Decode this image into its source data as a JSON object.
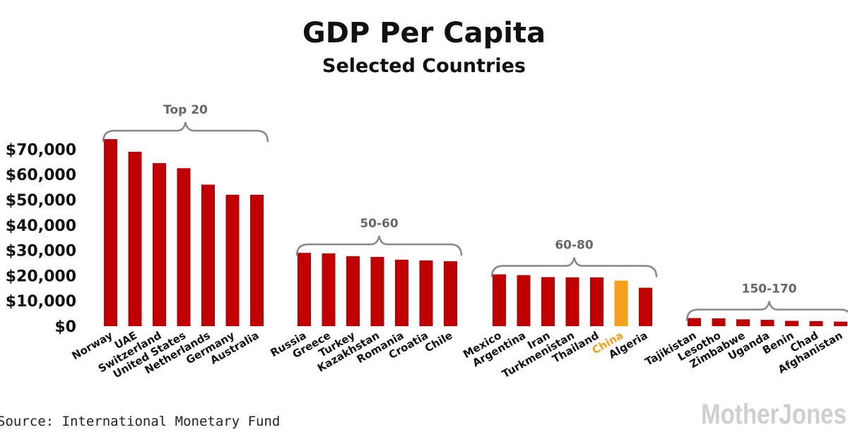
{
  "chart_data": {
    "type": "bar",
    "title": "GDP Per Capita",
    "subtitle": "Selected Countries",
    "xlabel": "",
    "ylabel": "",
    "ylim": [
      0,
      70000
    ],
    "yticks": [
      0,
      10000,
      20000,
      30000,
      40000,
      50000,
      60000,
      70000
    ],
    "ytick_labels": [
      "$0",
      "$10,000",
      "$20,000",
      "$30,000",
      "$40,000",
      "$50,000",
      "$60,000",
      "$70,000"
    ],
    "grid": false,
    "legend": "none",
    "colors": {
      "default": "#c00000",
      "highlight": "#f5a01a",
      "bracket": "#888888",
      "group_label": "#666666"
    },
    "groups": [
      {
        "name": "Top 20",
        "categories": [
          "Norway",
          "UAE",
          "Switzerland",
          "United States",
          "Netherlands",
          "Germany",
          "Australia"
        ],
        "values": [
          74000,
          69000,
          64500,
          62500,
          56000,
          52000,
          52000
        ]
      },
      {
        "name": "50-60",
        "categories": [
          "Russia",
          "Greece",
          "Turkey",
          "Kazakhstan",
          "Romania",
          "Croatia",
          "Chile"
        ],
        "values": [
          29000,
          28800,
          27700,
          27400,
          26300,
          26000,
          25700
        ]
      },
      {
        "name": "60-80",
        "categories": [
          "Mexico",
          "Argentina",
          "Iran",
          "Turkmenistan",
          "Thailand",
          "China",
          "Algeria"
        ],
        "values": [
          20500,
          20200,
          19400,
          19300,
          19300,
          18000,
          15200
        ],
        "highlight": [
          "China"
        ]
      },
      {
        "name": "150-170",
        "categories": [
          "Tajikistan",
          "Lesotho",
          "Zimbabwe",
          "Uganda",
          "Benin",
          "Chad",
          "Afghanistan"
        ],
        "values": [
          3200,
          3100,
          2700,
          2500,
          2100,
          2000,
          1800
        ]
      }
    ]
  },
  "source": "Source: International Monetary Fund",
  "brand": "MotherJones"
}
